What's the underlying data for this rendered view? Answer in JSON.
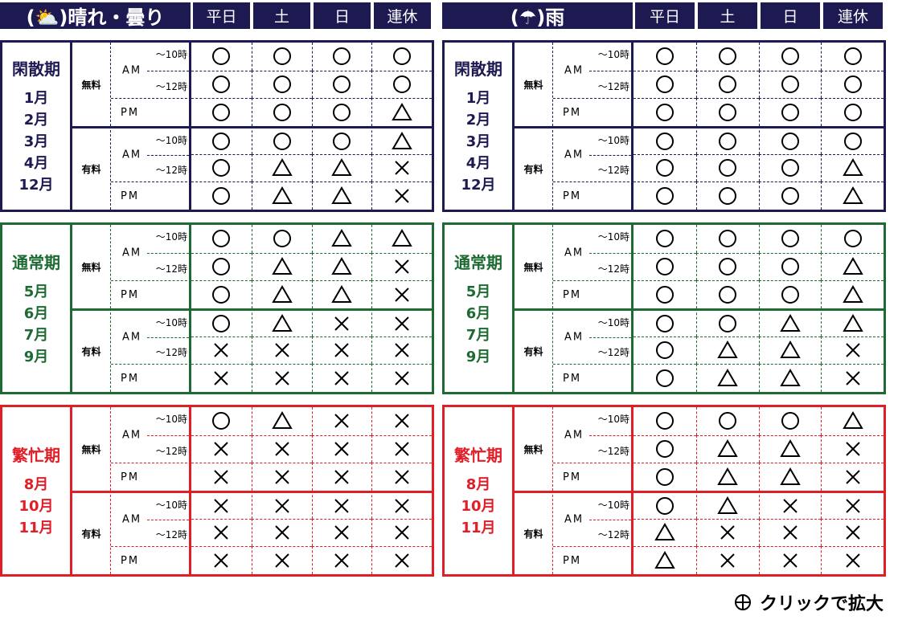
{
  "columns": [
    "平日",
    "土",
    "日",
    "連休"
  ],
  "fee_labels": [
    "無料",
    "有料"
  ],
  "time_labels": {
    "am": "AM",
    "am_sub": [
      "～10時",
      "～12時"
    ],
    "pm": "PM"
  },
  "colors": {
    "header": "#1d1a52",
    "閑散期": "#1d1a52",
    "通常期": "#1d6b32",
    "繁忙期": "#e01e28"
  },
  "symbols": {
    "○": "circle-available",
    "△": "triangle-few",
    "×": "cross-full"
  },
  "panels": [
    {
      "title": "(⛅)晴れ・曇り",
      "weather_icon": "sun-cloud-icon",
      "sections": [
        {
          "name": "閑散期",
          "color": "#1d1a52",
          "months": [
            "1月",
            "2月",
            "3月",
            "4月",
            "12月"
          ],
          "rows": [
            [
              "○",
              "○",
              "○",
              "○"
            ],
            [
              "○",
              "○",
              "○",
              "○"
            ],
            [
              "○",
              "○",
              "○",
              "△"
            ],
            [
              "○",
              "○",
              "○",
              "△"
            ],
            [
              "○",
              "△",
              "△",
              "×"
            ],
            [
              "○",
              "△",
              "△",
              "×"
            ]
          ]
        },
        {
          "name": "通常期",
          "color": "#1d6b32",
          "months": [
            "5月",
            "6月",
            "7月",
            "9月"
          ],
          "rows": [
            [
              "○",
              "○",
              "△",
              "△"
            ],
            [
              "○",
              "△",
              "△",
              "×"
            ],
            [
              "○",
              "△",
              "△",
              "×"
            ],
            [
              "○",
              "△",
              "×",
              "×"
            ],
            [
              "×",
              "×",
              "×",
              "×"
            ],
            [
              "×",
              "×",
              "×",
              "×"
            ]
          ]
        },
        {
          "name": "繁忙期",
          "color": "#e01e28",
          "months": [
            "8月",
            "10月",
            "11月"
          ],
          "rows": [
            [
              "○",
              "△",
              "×",
              "×"
            ],
            [
              "×",
              "×",
              "×",
              "×"
            ],
            [
              "×",
              "×",
              "×",
              "×"
            ],
            [
              "×",
              "×",
              "×",
              "×"
            ],
            [
              "×",
              "×",
              "×",
              "×"
            ],
            [
              "×",
              "×",
              "×",
              "×"
            ]
          ]
        }
      ]
    },
    {
      "title": "(☂)雨",
      "weather_icon": "umbrella-icon",
      "sections": [
        {
          "name": "閑散期",
          "color": "#1d1a52",
          "months": [
            "1月",
            "2月",
            "3月",
            "4月",
            "12月"
          ],
          "rows": [
            [
              "○",
              "○",
              "○",
              "○"
            ],
            [
              "○",
              "○",
              "○",
              "○"
            ],
            [
              "○",
              "○",
              "○",
              "○"
            ],
            [
              "○",
              "○",
              "○",
              "○"
            ],
            [
              "○",
              "○",
              "○",
              "△"
            ],
            [
              "○",
              "○",
              "○",
              "△"
            ]
          ]
        },
        {
          "name": "通常期",
          "color": "#1d6b32",
          "months": [
            "5月",
            "6月",
            "7月",
            "9月"
          ],
          "rows": [
            [
              "○",
              "○",
              "○",
              "○"
            ],
            [
              "○",
              "○",
              "○",
              "△"
            ],
            [
              "○",
              "○",
              "○",
              "△"
            ],
            [
              "○",
              "○",
              "△",
              "△"
            ],
            [
              "○",
              "△",
              "△",
              "×"
            ],
            [
              "○",
              "△",
              "△",
              "×"
            ]
          ]
        },
        {
          "name": "繁忙期",
          "color": "#e01e28",
          "months": [
            "8月",
            "10月",
            "11月"
          ],
          "rows": [
            [
              "○",
              "○",
              "○",
              "△"
            ],
            [
              "○",
              "△",
              "△",
              "×"
            ],
            [
              "○",
              "△",
              "△",
              "×"
            ],
            [
              "○",
              "△",
              "×",
              "×"
            ],
            [
              "△",
              "×",
              "×",
              "×"
            ],
            [
              "△",
              "×",
              "×",
              "×"
            ]
          ]
        }
      ]
    }
  ],
  "footer": {
    "icon": "zoom-plus-icon",
    "label": "クリックで拡大"
  }
}
